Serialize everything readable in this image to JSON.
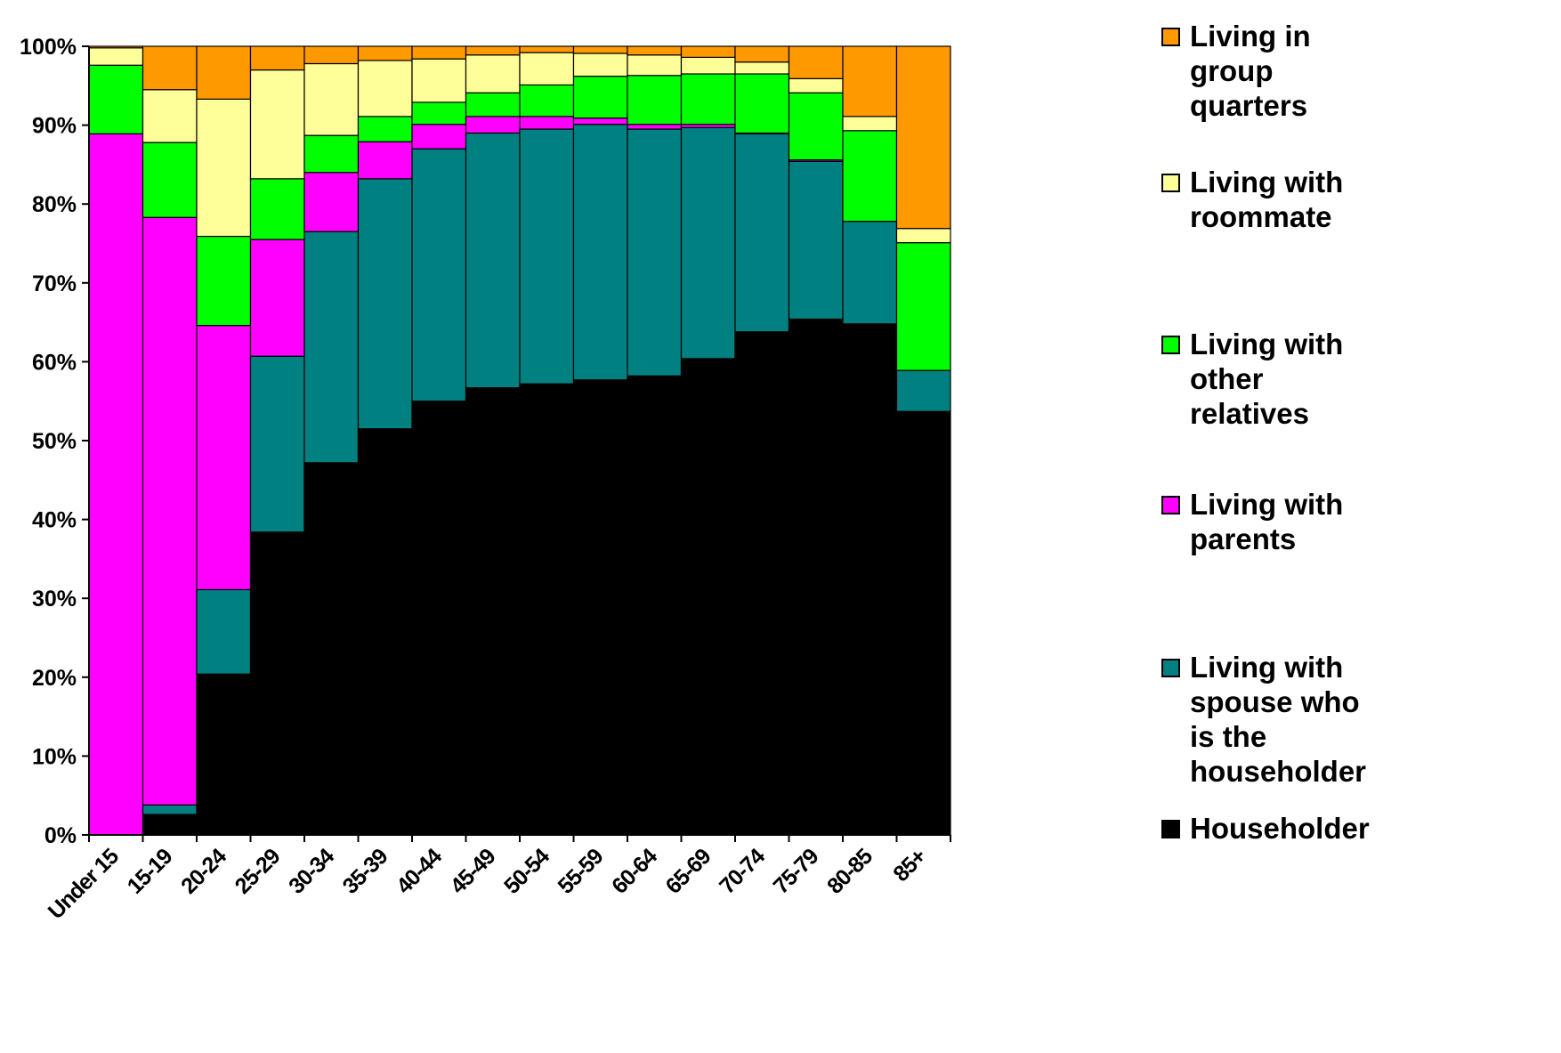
{
  "chart_data": {
    "type": "bar",
    "stacked": true,
    "normalized": true,
    "categories": [
      "Under 15",
      "15-19",
      "20-24",
      "25-29",
      "30-34",
      "35-39",
      "40-44",
      "45-49",
      "50-54",
      "55-59",
      "60-64",
      "65-69",
      "70-74",
      "75-79",
      "80-85",
      "85+"
    ],
    "y_ticks": [
      "0%",
      "10%",
      "20%",
      "30%",
      "40%",
      "50%",
      "60%",
      "70%",
      "80%",
      "90%",
      "100%"
    ],
    "ylim": [
      0,
      100
    ],
    "grid": false,
    "legend": "right",
    "series": [
      {
        "name": "Householder",
        "color": "#000000",
        "values": [
          0,
          2.6,
          20.4,
          38.4,
          47.2,
          51.5,
          55.0,
          56.7,
          57.2,
          57.7,
          58.2,
          60.4,
          63.8,
          65.4,
          64.8,
          53.7
        ]
      },
      {
        "name": "Living with spouse who is the householder",
        "color": "#008080",
        "values": [
          0,
          1.2,
          10.7,
          22.3,
          29.3,
          31.7,
          32.0,
          32.3,
          32.3,
          32.4,
          31.3,
          29.3,
          25.1,
          20.0,
          13.0,
          5.2
        ]
      },
      {
        "name": "Living with parents",
        "color": "#ff00ff",
        "values": [
          88.9,
          74.5,
          33.5,
          14.8,
          7.5,
          4.7,
          3.1,
          2.1,
          1.6,
          0.8,
          0.6,
          0.4,
          0.1,
          0.2,
          0.0,
          0.0
        ]
      },
      {
        "name": "Living with other relatives",
        "color": "#00ff00",
        "values": [
          8.7,
          9.5,
          11.3,
          7.7,
          4.7,
          3.2,
          2.8,
          3.0,
          4.0,
          5.3,
          6.2,
          6.4,
          7.5,
          8.5,
          11.5,
          16.2
        ]
      },
      {
        "name": "Living with roommate",
        "color": "#ffff99",
        "values": [
          2.2,
          6.7,
          17.4,
          13.8,
          9.1,
          7.1,
          5.5,
          4.8,
          4.1,
          2.9,
          2.6,
          2.1,
          1.5,
          1.8,
          1.8,
          1.8
        ]
      },
      {
        "name": "Living in group quarters",
        "color": "#ff9900",
        "values": [
          0.2,
          5.5,
          6.7,
          3.0,
          2.2,
          1.8,
          1.6,
          1.1,
          0.8,
          0.9,
          1.1,
          1.4,
          2.0,
          4.1,
          8.9,
          23.1
        ]
      }
    ],
    "legend_entries": [
      {
        "lines": [
          "Living in",
          "group",
          "quarters"
        ],
        "color": "#ff9900"
      },
      {
        "lines": [
          "Living with",
          "roommate"
        ],
        "color": "#ffff99"
      },
      {
        "lines": [
          "Living with",
          "other",
          "relatives"
        ],
        "color": "#00ff00"
      },
      {
        "lines": [
          "Living with",
          "parents"
        ],
        "color": "#ff00ff"
      },
      {
        "lines": [
          "Living with",
          "spouse who",
          "is the",
          "householder"
        ],
        "color": "#008080"
      },
      {
        "lines": [
          "Householder"
        ],
        "color": "#000000"
      }
    ]
  }
}
